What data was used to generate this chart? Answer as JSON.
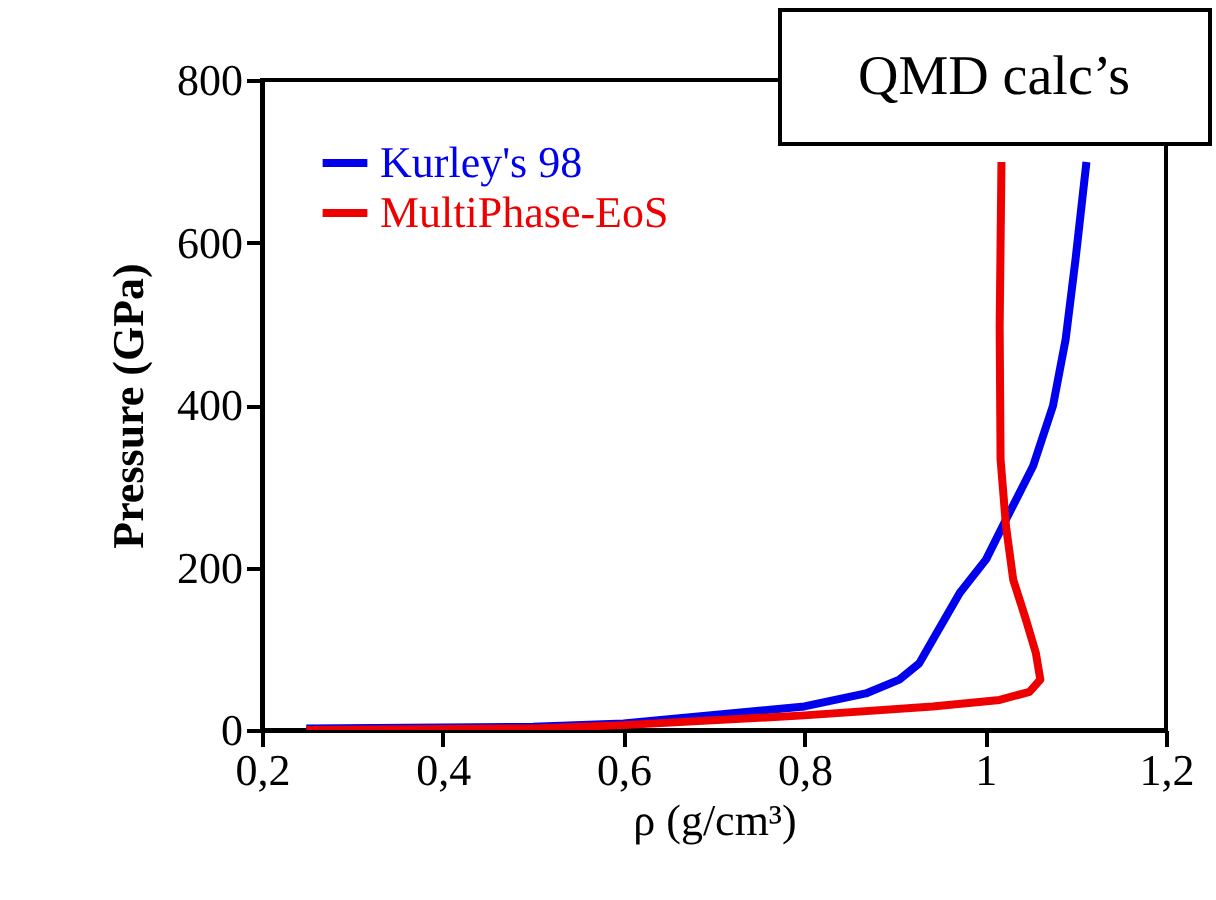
{
  "chart_data": {
    "type": "line",
    "xlabel": "ρ (g/cm³)",
    "ylabel": "Pressure (GPa)",
    "annotations": [
      "QMD calc’s"
    ],
    "xlim": [
      0.2,
      1.2
    ],
    "ylim": [
      0,
      800
    ],
    "xticks": [
      {
        "value": 0.2,
        "label": "0,2"
      },
      {
        "value": 0.4,
        "label": "0,4"
      },
      {
        "value": 0.6,
        "label": "0,6"
      },
      {
        "value": 0.8,
        "label": "0,8"
      },
      {
        "value": 1.0,
        "label": "1"
      },
      {
        "value": 1.2,
        "label": "1,2"
      }
    ],
    "yticks": [
      0,
      200,
      400,
      600,
      800
    ],
    "grid": false,
    "legend": "top left",
    "line_style": "solid",
    "marker": "none",
    "series": [
      {
        "name": "Kurley's 98",
        "color": "#0000ee",
        "x": [
          0.249,
          0.5,
          0.6,
          0.8,
          0.868,
          0.905,
          0.927,
          0.942,
          0.972,
          1.001,
          1.023,
          1.053,
          1.075,
          1.089,
          1.1,
          1.112
        ],
        "values": [
          2,
          4,
          8,
          29,
          45,
          62,
          82,
          111,
          169,
          210,
          259,
          325,
          399,
          481,
          580,
          699
        ]
      },
      {
        "name": "MultiPhase-EoS",
        "color": "#ee0000",
        "x": [
          0.249,
          0.5,
          0.6,
          0.8,
          0.942,
          1.016,
          1.049,
          1.061,
          1.056,
          1.045,
          1.031,
          1.023,
          1.017,
          1.016,
          1.018
        ],
        "values": [
          0,
          2,
          6,
          18,
          29,
          37,
          47,
          62,
          95,
          136,
          185,
          251,
          333,
          497,
          699
        ]
      }
    ]
  }
}
